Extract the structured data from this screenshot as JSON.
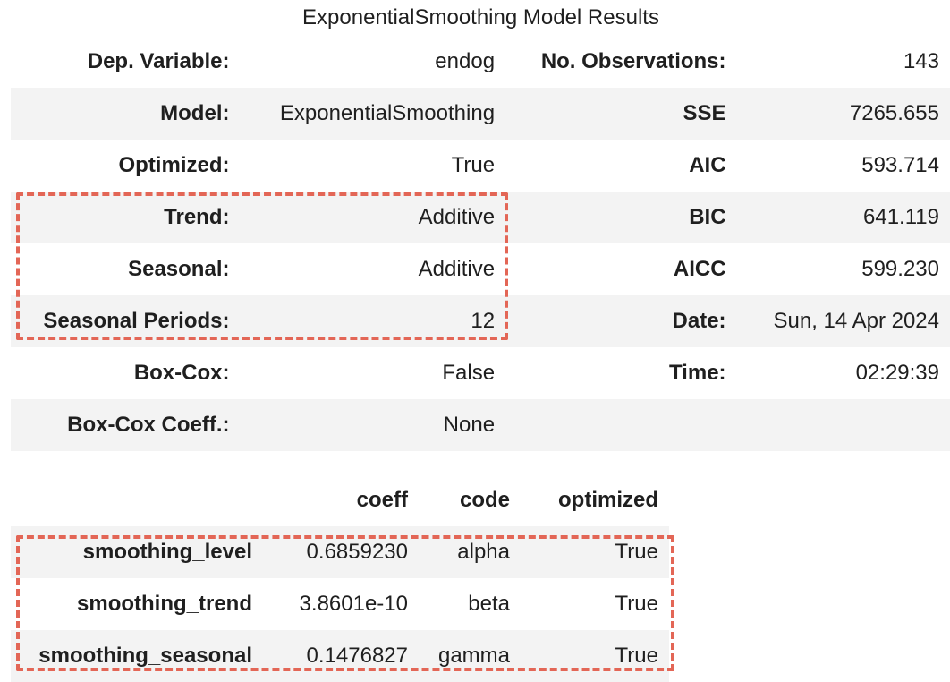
{
  "results": {
    "title": "ExponentialSmoothing Model Results",
    "rows": [
      {
        "l1": "Dep. Variable:",
        "v1": "endog",
        "l2": "No. Observations:",
        "v2": "143"
      },
      {
        "l1": "Model:",
        "v1": "ExponentialSmoothing",
        "l2": "SSE",
        "v2": "7265.655"
      },
      {
        "l1": "Optimized:",
        "v1": "True",
        "l2": "AIC",
        "v2": "593.714"
      },
      {
        "l1": "Trend:",
        "v1": "Additive",
        "l2": "BIC",
        "v2": "641.119"
      },
      {
        "l1": "Seasonal:",
        "v1": "Additive",
        "l2": "AICC",
        "v2": "599.230"
      },
      {
        "l1": "Seasonal Periods:",
        "v1": "12",
        "l2": "Date:",
        "v2": "Sun, 14 Apr 2024"
      },
      {
        "l1": "Box-Cox:",
        "v1": "False",
        "l2": "Time:",
        "v2": "02:29:39"
      },
      {
        "l1": "Box-Cox Coeff.:",
        "v1": "None",
        "l2": "",
        "v2": ""
      }
    ]
  },
  "params": {
    "headers": [
      "",
      "coeff",
      "code",
      "optimized"
    ],
    "rows": [
      {
        "name": "smoothing_level",
        "coeff": "0.6859230",
        "code": "alpha",
        "optimized": "True"
      },
      {
        "name": "smoothing_trend",
        "coeff": "3.8601e-10",
        "code": "beta",
        "optimized": "True"
      },
      {
        "name": "smoothing_seasonal",
        "coeff": "0.1476827",
        "code": "gamma",
        "optimized": "True"
      }
    ]
  },
  "highlight": {
    "color": "#e36656",
    "style": "dashed"
  }
}
